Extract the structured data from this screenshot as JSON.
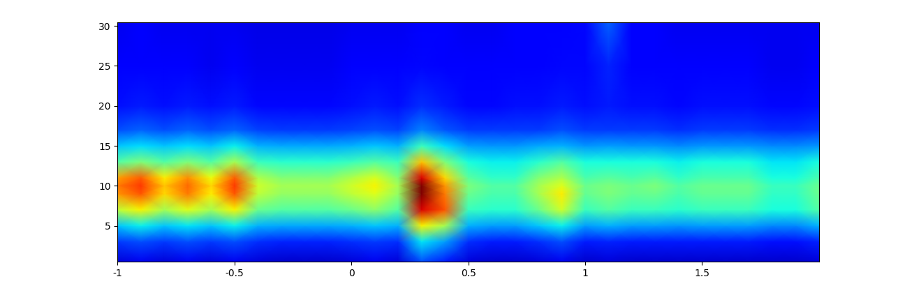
{
  "chart_data": {
    "type": "heatmap",
    "xlim": [
      -1,
      2
    ],
    "ylim": [
      0.5,
      30.5
    ],
    "xticks": [
      -1,
      -0.5,
      0,
      0.5,
      1,
      1.5
    ],
    "yticks": [
      5,
      10,
      15,
      20,
      25,
      30
    ],
    "zlim": [
      0,
      1
    ],
    "color": "jet",
    "x": [
      -1.0,
      -0.9,
      -0.8,
      -0.7,
      -0.6,
      -0.5,
      -0.4,
      -0.3,
      -0.2,
      -0.1,
      0.0,
      0.1,
      0.2,
      0.3,
      0.4,
      0.5,
      0.6,
      0.7,
      0.8,
      0.9,
      1.0,
      1.1,
      1.2,
      1.3,
      1.4,
      1.5,
      1.6,
      1.7,
      1.8,
      1.9,
      2.0
    ],
    "y": [
      0.5,
      3,
      5,
      7,
      9,
      10,
      11,
      13,
      15,
      17,
      20,
      25,
      30.5
    ],
    "cells": [
      [
        0.08,
        0.1,
        0.08,
        0.1,
        0.08,
        0.1,
        0.08,
        0.07,
        0.07,
        0.07,
        0.08,
        0.1,
        0.08,
        0.2,
        0.15,
        0.08,
        0.07,
        0.07,
        0.08,
        0.1,
        0.07,
        0.08,
        0.07,
        0.07,
        0.07,
        0.07,
        0.07,
        0.07,
        0.07,
        0.07,
        0.08
      ],
      [
        0.18,
        0.2,
        0.18,
        0.2,
        0.18,
        0.2,
        0.17,
        0.16,
        0.16,
        0.16,
        0.17,
        0.18,
        0.17,
        0.35,
        0.28,
        0.17,
        0.15,
        0.15,
        0.17,
        0.2,
        0.15,
        0.16,
        0.15,
        0.15,
        0.15,
        0.15,
        0.15,
        0.15,
        0.14,
        0.14,
        0.16
      ],
      [
        0.32,
        0.36,
        0.32,
        0.35,
        0.32,
        0.36,
        0.3,
        0.29,
        0.29,
        0.29,
        0.3,
        0.32,
        0.3,
        0.65,
        0.55,
        0.3,
        0.28,
        0.28,
        0.32,
        0.36,
        0.28,
        0.3,
        0.28,
        0.28,
        0.27,
        0.28,
        0.28,
        0.28,
        0.26,
        0.26,
        0.3
      ],
      [
        0.58,
        0.65,
        0.55,
        0.62,
        0.55,
        0.65,
        0.48,
        0.45,
        0.45,
        0.45,
        0.48,
        0.52,
        0.45,
        0.92,
        0.82,
        0.42,
        0.4,
        0.4,
        0.48,
        0.6,
        0.42,
        0.45,
        0.42,
        0.42,
        0.4,
        0.42,
        0.42,
        0.42,
        0.38,
        0.38,
        0.45
      ],
      [
        0.75,
        0.82,
        0.68,
        0.78,
        0.66,
        0.82,
        0.58,
        0.53,
        0.53,
        0.53,
        0.58,
        0.62,
        0.53,
        1.0,
        0.78,
        0.48,
        0.44,
        0.44,
        0.55,
        0.66,
        0.47,
        0.5,
        0.47,
        0.48,
        0.44,
        0.47,
        0.47,
        0.47,
        0.41,
        0.41,
        0.48
      ],
      [
        0.78,
        0.85,
        0.7,
        0.8,
        0.68,
        0.85,
        0.6,
        0.55,
        0.55,
        0.55,
        0.6,
        0.65,
        0.55,
        1.0,
        0.75,
        0.5,
        0.45,
        0.45,
        0.55,
        0.62,
        0.48,
        0.5,
        0.48,
        0.5,
        0.45,
        0.48,
        0.48,
        0.48,
        0.42,
        0.42,
        0.48
      ],
      [
        0.74,
        0.81,
        0.66,
        0.76,
        0.64,
        0.81,
        0.56,
        0.51,
        0.51,
        0.51,
        0.56,
        0.61,
        0.51,
        0.92,
        0.68,
        0.46,
        0.41,
        0.41,
        0.51,
        0.56,
        0.44,
        0.46,
        0.44,
        0.46,
        0.41,
        0.44,
        0.44,
        0.44,
        0.38,
        0.38,
        0.44
      ],
      [
        0.45,
        0.5,
        0.45,
        0.5,
        0.45,
        0.55,
        0.42,
        0.4,
        0.4,
        0.4,
        0.42,
        0.45,
        0.42,
        0.7,
        0.5,
        0.38,
        0.36,
        0.36,
        0.4,
        0.45,
        0.38,
        0.38,
        0.38,
        0.38,
        0.36,
        0.38,
        0.38,
        0.38,
        0.35,
        0.35,
        0.38
      ],
      [
        0.32,
        0.34,
        0.32,
        0.34,
        0.32,
        0.36,
        0.3,
        0.29,
        0.29,
        0.29,
        0.3,
        0.32,
        0.3,
        0.42,
        0.34,
        0.28,
        0.27,
        0.27,
        0.29,
        0.3,
        0.27,
        0.28,
        0.27,
        0.27,
        0.26,
        0.27,
        0.27,
        0.27,
        0.26,
        0.26,
        0.27
      ],
      [
        0.2,
        0.22,
        0.2,
        0.22,
        0.2,
        0.22,
        0.19,
        0.18,
        0.18,
        0.18,
        0.19,
        0.2,
        0.19,
        0.25,
        0.21,
        0.18,
        0.18,
        0.18,
        0.18,
        0.2,
        0.18,
        0.18,
        0.18,
        0.18,
        0.17,
        0.18,
        0.18,
        0.18,
        0.17,
        0.17,
        0.18
      ],
      [
        0.14,
        0.15,
        0.14,
        0.15,
        0.14,
        0.15,
        0.13,
        0.13,
        0.13,
        0.13,
        0.14,
        0.15,
        0.14,
        0.17,
        0.15,
        0.13,
        0.13,
        0.14,
        0.14,
        0.15,
        0.14,
        0.15,
        0.14,
        0.14,
        0.13,
        0.14,
        0.14,
        0.14,
        0.13,
        0.13,
        0.14
      ],
      [
        0.11,
        0.12,
        0.11,
        0.11,
        0.1,
        0.11,
        0.1,
        0.1,
        0.1,
        0.1,
        0.11,
        0.11,
        0.11,
        0.13,
        0.12,
        0.11,
        0.11,
        0.12,
        0.12,
        0.13,
        0.13,
        0.16,
        0.12,
        0.12,
        0.11,
        0.11,
        0.11,
        0.11,
        0.1,
        0.1,
        0.11
      ],
      [
        0.1,
        0.11,
        0.1,
        0.1,
        0.1,
        0.1,
        0.09,
        0.09,
        0.09,
        0.09,
        0.1,
        0.1,
        0.1,
        0.12,
        0.11,
        0.1,
        0.1,
        0.11,
        0.11,
        0.12,
        0.13,
        0.22,
        0.12,
        0.11,
        0.1,
        0.1,
        0.1,
        0.1,
        0.1,
        0.1,
        0.1
      ]
    ]
  }
}
